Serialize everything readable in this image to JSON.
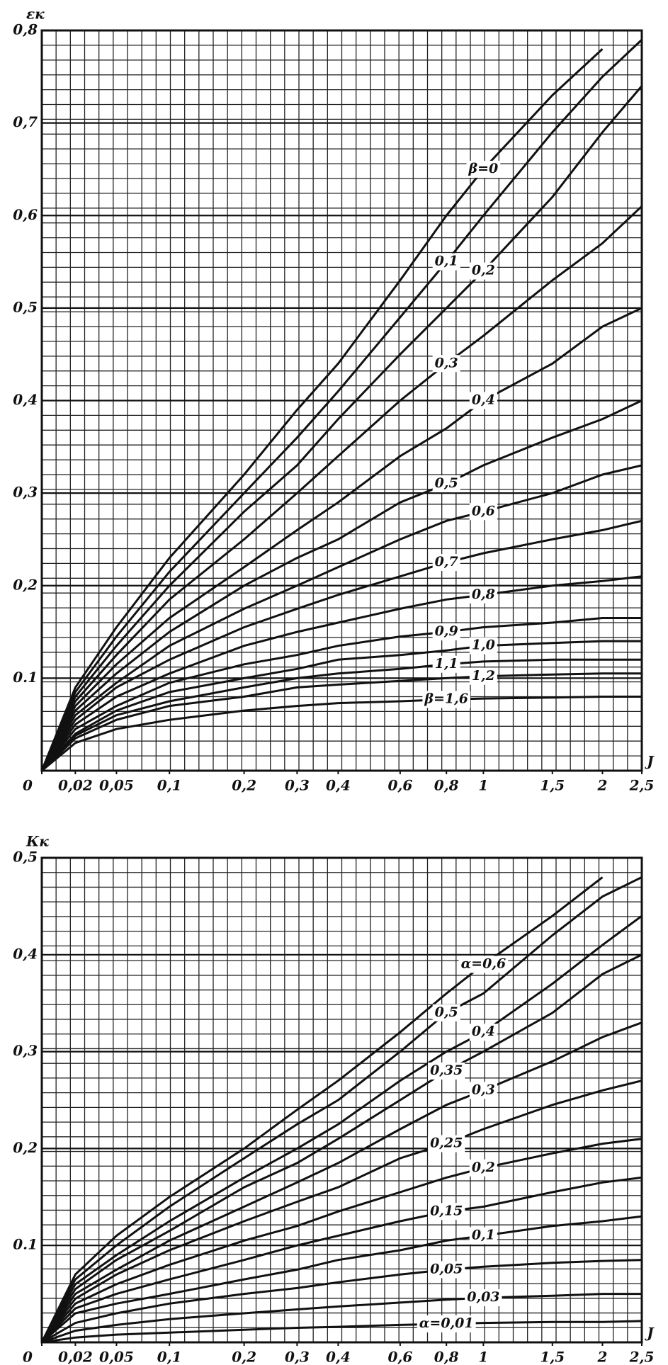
{
  "chart_data": [
    {
      "type": "line",
      "ylabel": "εк",
      "xlabel": "J",
      "x": [
        0,
        0.02,
        0.05,
        0.1,
        0.2,
        0.3,
        0.4,
        0.6,
        0.8,
        1,
        1.5,
        2,
        2.5
      ],
      "xlim": [
        0,
        2.5
      ],
      "ylim": [
        0,
        0.8
      ],
      "xticks": [
        {
          "value": 0,
          "label": "0"
        },
        {
          "value": 0.02,
          "label": "0,02"
        },
        {
          "value": 0.05,
          "label": "0,05"
        },
        {
          "value": 0.1,
          "label": "0,1"
        },
        {
          "value": 0.2,
          "label": "0,2"
        },
        {
          "value": 0.3,
          "label": "0,3"
        },
        {
          "value": 0.4,
          "label": "0,4"
        },
        {
          "value": 0.6,
          "label": "0,6"
        },
        {
          "value": 0.8,
          "label": "0,8"
        },
        1,
        {
          "value": 1.5,
          "label": "1,5"
        },
        2,
        {
          "value": 2.5,
          "label": "2,5"
        }
      ],
      "yticks": [
        0.1,
        {
          "value": 0.2,
          "label": "0,2"
        },
        {
          "value": 0.3,
          "label": "0,3"
        },
        {
          "value": 0.4,
          "label": "0,4"
        },
        {
          "value": 0.5,
          "label": "0,5"
        },
        {
          "value": 0.6,
          "label": "0,6"
        },
        {
          "value": 0.7,
          "label": "0,7"
        },
        {
          "value": 0.8,
          "label": "0,8"
        }
      ],
      "grid": true,
      "series": [
        {
          "name": "β=0",
          "color": "#111111",
          "values": [
            0,
            0.09,
            0.155,
            0.23,
            0.32,
            0.39,
            0.44,
            0.53,
            0.6,
            0.65,
            0.73,
            0.78,
            null
          ]
        },
        {
          "name": "0,1",
          "color": "#111111",
          "values": [
            0,
            0.085,
            0.145,
            0.215,
            0.3,
            0.36,
            0.41,
            0.49,
            0.55,
            0.6,
            0.69,
            0.75,
            0.79
          ]
        },
        {
          "name": "0,2",
          "color": "#111111",
          "values": [
            0,
            0.08,
            0.135,
            0.2,
            0.28,
            0.33,
            0.38,
            0.45,
            0.5,
            0.54,
            0.62,
            0.69,
            0.74
          ]
        },
        {
          "name": "0,3",
          "color": "#111111",
          "values": [
            0,
            0.075,
            0.125,
            0.185,
            0.25,
            0.3,
            0.34,
            0.4,
            0.44,
            0.47,
            0.53,
            0.57,
            0.61
          ]
        },
        {
          "name": "0,4",
          "color": "#111111",
          "values": [
            0,
            0.07,
            0.115,
            0.165,
            0.22,
            0.26,
            0.29,
            0.34,
            0.37,
            0.4,
            0.44,
            0.48,
            0.5
          ]
        },
        {
          "name": "0,5",
          "color": "#111111",
          "values": [
            0,
            0.065,
            0.105,
            0.15,
            0.2,
            0.23,
            0.25,
            0.29,
            0.31,
            0.33,
            0.36,
            0.38,
            0.4
          ]
        },
        {
          "name": "0,6",
          "color": "#111111",
          "values": [
            0,
            0.06,
            0.095,
            0.135,
            0.175,
            0.2,
            0.22,
            0.25,
            0.27,
            0.28,
            0.3,
            0.32,
            0.33
          ]
        },
        {
          "name": "0,7",
          "color": "#111111",
          "values": [
            0,
            0.055,
            0.09,
            0.12,
            0.155,
            0.175,
            0.19,
            0.21,
            0.225,
            0.235,
            0.25,
            0.26,
            0.27
          ]
        },
        {
          "name": "0,8",
          "color": "#111111",
          "values": [
            0,
            0.05,
            0.08,
            0.105,
            0.135,
            0.15,
            0.16,
            0.175,
            0.185,
            0.19,
            0.2,
            0.205,
            0.21
          ]
        },
        {
          "name": "0,9",
          "color": "#111111",
          "values": [
            0,
            0.045,
            0.07,
            0.095,
            0.115,
            0.125,
            0.135,
            0.145,
            0.15,
            0.155,
            0.16,
            0.165,
            0.165
          ]
        },
        {
          "name": "1,0",
          "color": "#111111",
          "values": [
            0,
            0.04,
            0.065,
            0.085,
            0.1,
            0.11,
            0.12,
            0.125,
            0.13,
            0.135,
            0.138,
            0.14,
            0.14
          ]
        },
        {
          "name": "1,1",
          "color": "#111111",
          "values": [
            0,
            0.038,
            0.06,
            0.075,
            0.09,
            0.1,
            0.105,
            0.11,
            0.115,
            0.118,
            0.12,
            0.12,
            0.12
          ]
        },
        {
          "name": "1,2",
          "color": "#111111",
          "values": [
            0,
            0.035,
            0.055,
            0.07,
            0.08,
            0.09,
            0.093,
            0.097,
            0.1,
            0.102,
            0.104,
            0.105,
            0.105
          ]
        },
        {
          "name": "β=1,6",
          "color": "#111111",
          "values": [
            0,
            0.03,
            0.045,
            0.055,
            0.065,
            0.07,
            0.073,
            0.075,
            0.077,
            0.078,
            0.079,
            0.08,
            0.08
          ]
        }
      ]
    },
    {
      "type": "line",
      "ylabel": "Кк",
      "xlabel": "J",
      "x": [
        0,
        0.02,
        0.05,
        0.1,
        0.2,
        0.3,
        0.4,
        0.6,
        0.8,
        1,
        1.5,
        2,
        2.5
      ],
      "xlim": [
        0,
        2.5
      ],
      "ylim": [
        0,
        0.5
      ],
      "xticks": [
        {
          "value": 0,
          "label": "0"
        },
        {
          "value": 0.02,
          "label": "0,02"
        },
        {
          "value": 0.05,
          "label": "0,05"
        },
        {
          "value": 0.1,
          "label": "0,1"
        },
        {
          "value": 0.2,
          "label": "0,2"
        },
        {
          "value": 0.3,
          "label": "0,3"
        },
        {
          "value": 0.4,
          "label": "0,4"
        },
        {
          "value": 0.6,
          "label": "0,6"
        },
        {
          "value": 0.8,
          "label": "0,8"
        },
        1,
        {
          "value": 1.5,
          "label": "1,5"
        },
        2,
        {
          "value": 2.5,
          "label": "2,5"
        }
      ],
      "yticks": [
        0.1,
        {
          "value": 0.2,
          "label": "0,2"
        },
        {
          "value": 0.3,
          "label": "0,3"
        },
        {
          "value": 0.4,
          "label": "0,4"
        },
        {
          "value": 0.5,
          "label": "0,5"
        }
      ],
      "grid": true,
      "series": [
        {
          "name": "α=0,6",
          "color": "#111111",
          "values": [
            0,
            0.07,
            0.11,
            0.15,
            0.2,
            0.24,
            0.27,
            0.32,
            0.36,
            0.39,
            0.44,
            0.48,
            null
          ]
        },
        {
          "name": "0,5",
          "color": "#111111",
          "values": [
            0,
            0.065,
            0.1,
            0.14,
            0.19,
            0.225,
            0.25,
            0.3,
            0.34,
            0.36,
            0.42,
            0.46,
            0.48
          ]
        },
        {
          "name": "0,4",
          "color": "#111111",
          "values": [
            0,
            0.06,
            0.09,
            0.125,
            0.17,
            0.2,
            0.225,
            0.27,
            0.3,
            0.32,
            0.37,
            0.41,
            0.44
          ]
        },
        {
          "name": "0,35",
          "color": "#111111",
          "values": [
            0,
            0.055,
            0.085,
            0.115,
            0.16,
            0.185,
            0.21,
            0.25,
            0.28,
            0.3,
            0.34,
            0.38,
            0.4
          ]
        },
        {
          "name": "0,3",
          "color": "#111111",
          "values": [
            0,
            0.05,
            0.075,
            0.105,
            0.14,
            0.165,
            0.185,
            0.22,
            0.245,
            0.26,
            0.29,
            0.315,
            0.33
          ]
        },
        {
          "name": "0,25",
          "color": "#111111",
          "values": [
            0,
            0.045,
            0.07,
            0.095,
            0.125,
            0.145,
            0.16,
            0.19,
            0.205,
            0.22,
            0.245,
            0.26,
            0.27
          ]
        },
        {
          "name": "0,2",
          "color": "#111111",
          "values": [
            0,
            0.04,
            0.06,
            0.08,
            0.105,
            0.12,
            0.135,
            0.155,
            0.17,
            0.18,
            0.195,
            0.205,
            0.21
          ]
        },
        {
          "name": "0,15",
          "color": "#111111",
          "values": [
            0,
            0.035,
            0.05,
            0.065,
            0.085,
            0.1,
            0.11,
            0.125,
            0.135,
            0.14,
            0.155,
            0.165,
            0.17
          ]
        },
        {
          "name": "0,1",
          "color": "#111111",
          "values": [
            0,
            0.03,
            0.04,
            0.05,
            0.065,
            0.075,
            0.085,
            0.095,
            0.105,
            0.11,
            0.12,
            0.125,
            0.13
          ]
        },
        {
          "name": "0,05",
          "color": "#111111",
          "values": [
            0,
            0.02,
            0.03,
            0.04,
            0.05,
            0.056,
            0.062,
            0.07,
            0.075,
            0.078,
            0.082,
            0.084,
            0.085
          ]
        },
        {
          "name": "0,03",
          "color": "#111111",
          "values": [
            0,
            0.012,
            0.018,
            0.024,
            0.03,
            0.034,
            0.037,
            0.041,
            0.044,
            0.046,
            0.048,
            0.05,
            0.05
          ]
        },
        {
          "name": "α=0,01",
          "color": "#111111",
          "values": [
            0,
            0.005,
            0.008,
            0.01,
            0.013,
            0.015,
            0.016,
            0.018,
            0.019,
            0.02,
            0.021,
            0.021,
            0.022
          ]
        }
      ]
    }
  ]
}
